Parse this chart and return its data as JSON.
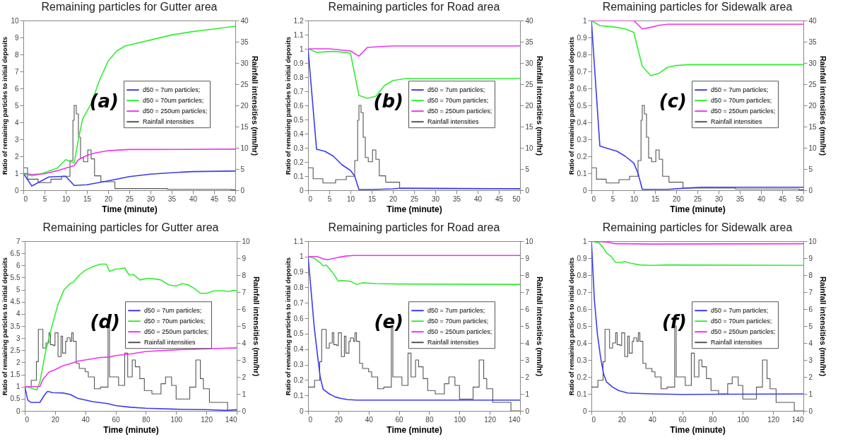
{
  "chart_data": [
    {
      "type": "line",
      "title": "Remaining particles for Gutter area",
      "xlabel": "Time (minute)",
      "ylabel": "Ratio of remaining particles to initial deposits",
      "y2label": "Rainfall intensities (mm/hr)",
      "annotations": [
        "(a)"
      ],
      "legend": "right",
      "xlim": [
        0,
        50
      ],
      "xticks": [
        0,
        5,
        10,
        15,
        20,
        25,
        30,
        35,
        40,
        45,
        50
      ],
      "ylim": [
        0,
        10
      ],
      "yticks": [
        0,
        1,
        2,
        3,
        4,
        5,
        6,
        7,
        8,
        9,
        10
      ],
      "y2lim": [
        0,
        40
      ],
      "y2ticks": [
        0,
        5,
        10,
        15,
        20,
        25,
        30,
        35,
        40
      ],
      "series": [
        {
          "name": "d50 = 7um particles;",
          "color": "#3b3bf0",
          "x": [
            0,
            2,
            6,
            10,
            12,
            15,
            20,
            25,
            30,
            35,
            40,
            50
          ],
          "values": [
            1,
            0.25,
            0.78,
            0.82,
            0.28,
            0.32,
            0.55,
            0.8,
            0.95,
            1.03,
            1.1,
            1.13
          ]
        },
        {
          "name": "d50 = 70um particles;",
          "color": "#33ee33",
          "x": [
            0,
            2,
            4,
            8,
            10,
            12,
            13,
            14,
            16,
            18,
            20,
            22,
            24,
            30,
            35,
            40,
            45,
            50
          ],
          "values": [
            0.97,
            0.85,
            0.95,
            1.3,
            1.8,
            1.6,
            3,
            4.2,
            5.1,
            6.5,
            7.6,
            8.2,
            8.5,
            8.85,
            9.15,
            9.35,
            9.5,
            9.67
          ]
        },
        {
          "name": "d50 = 250um particles;",
          "color": "#ee33ee",
          "x": [
            0,
            2,
            5,
            8,
            10,
            12,
            13,
            15,
            17,
            20,
            25,
            30,
            50
          ],
          "values": [
            1,
            0.93,
            0.97,
            1.15,
            1.3,
            1.45,
            1.8,
            2.05,
            2.2,
            2.33,
            2.4,
            2.4,
            2.42
          ]
        },
        {
          "name": "Rainfall intensities",
          "color": "#555555",
          "type": "step",
          "axis": "y2",
          "x": [
            0,
            1,
            3.5,
            6.5,
            9,
            11,
            11.7,
            12,
            12.5,
            13,
            13.5,
            14.2,
            15.2,
            16,
            16.8,
            18.3,
            21.6,
            34,
            49,
            50
          ],
          "values": [
            5.3,
            2.6,
            1.8,
            2.6,
            3.3,
            7,
            16.5,
            20,
            18,
            12.5,
            7.6,
            6.7,
            9.5,
            7.4,
            3.4,
            2,
            0.4,
            0.2,
            0.1,
            0.1
          ]
        }
      ]
    },
    {
      "type": "line",
      "title": "Remaining particles for Road area",
      "xlabel": "Time (minute)",
      "ylabel": "Ratio of remaining particles to initial deposits",
      "y2label": "Rainfall intensities (mm/hr)",
      "annotations": [
        "(b)"
      ],
      "legend": "right",
      "xlim": [
        0,
        50
      ],
      "xticks": [
        0,
        5,
        10,
        15,
        20,
        25,
        30,
        35,
        40,
        45,
        50
      ],
      "ylim": [
        0,
        1.2
      ],
      "yticks": [
        0,
        0.1,
        0.2,
        0.3,
        0.4,
        0.5,
        0.6,
        0.7,
        0.8,
        0.9,
        1,
        1.1,
        1.2
      ],
      "y2lim": [
        0,
        40
      ],
      "y2ticks": [
        0,
        5,
        10,
        15,
        20,
        25,
        30,
        35,
        40
      ],
      "series": [
        {
          "name": "d50 = 7um particles;",
          "color": "#3b3bf0",
          "x": [
            0,
            2,
            4,
            6,
            8,
            10,
            11,
            12,
            15,
            20,
            22,
            30,
            50
          ],
          "values": [
            1,
            0.29,
            0.275,
            0.24,
            0.18,
            0.14,
            0.1,
            0.005,
            0.005,
            0.01,
            0.015,
            0.013,
            0.01
          ]
        },
        {
          "name": "d50 = 70um particles;",
          "color": "#33ee33",
          "x": [
            0,
            2,
            4,
            6,
            8,
            10,
            12,
            14,
            16,
            18,
            20,
            23,
            50
          ],
          "values": [
            1,
            0.975,
            0.978,
            0.982,
            0.977,
            0.97,
            0.67,
            0.65,
            0.665,
            0.74,
            0.775,
            0.79,
            0.79
          ]
        },
        {
          "name": "d50 = 250um particles;",
          "color": "#ee33ee",
          "x": [
            0,
            5,
            10,
            12,
            14,
            20,
            50
          ],
          "values": [
            1,
            1,
            0.985,
            0.948,
            1.01,
            1.02,
            1.02
          ]
        },
        {
          "name": "Rainfall intensities",
          "color": "#555555",
          "type": "step",
          "axis": "y2",
          "x": [
            0,
            1.2,
            3.5,
            6.5,
            9,
            11,
            11.7,
            12,
            12.5,
            13,
            13.5,
            14.2,
            15.2,
            16,
            16.8,
            18.3,
            21.6,
            50
          ],
          "values": [
            5.3,
            2.7,
            1.7,
            2.5,
            3.3,
            7,
            16.5,
            20,
            18.3,
            12.5,
            7.7,
            6.7,
            9.5,
            7.3,
            3.4,
            1.9,
            0.4,
            0.4
          ]
        }
      ]
    },
    {
      "type": "line",
      "title": "Remaining particles for Sidewalk area",
      "xlabel": "Time (minute)",
      "ylabel": "Ratio of remaining particles to initial deposits",
      "y2label": "Rainfall intensities (mm/hr)",
      "annotations": [
        "(c)"
      ],
      "legend": "right",
      "xlim": [
        0,
        50
      ],
      "xticks": [
        0,
        5,
        10,
        15,
        20,
        25,
        30,
        35,
        40,
        45,
        50
      ],
      "ylim": [
        0,
        1
      ],
      "yticks": [
        0,
        0.1,
        0.2,
        0.3,
        0.4,
        0.5,
        0.6,
        0.7,
        0.8,
        0.9,
        1
      ],
      "y2lim": [
        0,
        40
      ],
      "y2ticks": [
        0,
        5,
        10,
        15,
        20,
        25,
        30,
        35,
        40
      ],
      "series": [
        {
          "name": "d50 = 7um particles;",
          "color": "#3b3bf0",
          "x": [
            0,
            2,
            4,
            6,
            8,
            10,
            11,
            12,
            18,
            22,
            26,
            50
          ],
          "values": [
            1,
            0.26,
            0.245,
            0.23,
            0.2,
            0.16,
            0.1,
            0.005,
            0.005,
            0.012,
            0.018,
            0.018
          ]
        },
        {
          "name": "d50 = 70um particles;",
          "color": "#33ee33",
          "x": [
            0,
            2,
            4,
            6,
            8,
            10,
            12,
            14,
            16,
            18,
            20,
            23,
            50
          ],
          "values": [
            1,
            0.97,
            0.965,
            0.96,
            0.95,
            0.93,
            0.73,
            0.675,
            0.69,
            0.725,
            0.735,
            0.74,
            0.74
          ]
        },
        {
          "name": "d50 = 250um particles;",
          "color": "#ee33ee",
          "x": [
            0,
            10,
            12,
            14,
            16,
            18,
            50
          ],
          "values": [
            1,
            1,
            0.95,
            0.96,
            0.972,
            0.978,
            0.978
          ]
        },
        {
          "name": "Rainfall intensities",
          "color": "#555555",
          "type": "step",
          "axis": "y2",
          "x": [
            0,
            1.2,
            3.5,
            6.5,
            9,
            11,
            11.7,
            12,
            12.5,
            13,
            13.5,
            14.2,
            15.2,
            16,
            16.8,
            18.3,
            21.6,
            34,
            49,
            50
          ],
          "values": [
            5.3,
            2.6,
            1.7,
            2.5,
            3.3,
            7,
            16.5,
            20,
            18,
            12.5,
            7.6,
            6.7,
            9.5,
            7.3,
            3.3,
            1.9,
            0.5,
            0.3,
            0.1,
            0.1
          ]
        }
      ]
    },
    {
      "type": "line",
      "title": "Remaining particles for Gutter area",
      "xlabel": "Time (minute)",
      "ylabel": "Ratio of remaining particles to initial deposits",
      "y2label": "Rainfall intensities (mm/hr)",
      "annotations": [
        "(d)"
      ],
      "legend": "right",
      "xlim": [
        0,
        140
      ],
      "xticks": [
        0,
        20,
        40,
        60,
        80,
        100,
        120,
        140
      ],
      "ylim": [
        0,
        7
      ],
      "yticks": [
        0,
        0.5,
        1,
        1.5,
        2,
        2.5,
        3,
        3.5,
        4,
        4.5,
        5,
        5.5,
        6,
        6.5,
        7
      ],
      "y2lim": [
        0,
        10
      ],
      "y2ticks": [
        0,
        1,
        2,
        3,
        4,
        5,
        6,
        7,
        8,
        9,
        10
      ],
      "series": [
        {
          "name": "d50 = 7um particles;",
          "color": "#3b3bf0",
          "x": [
            0,
            2,
            4,
            10,
            13,
            15,
            17,
            18,
            25,
            30,
            35,
            45,
            55,
            60,
            70,
            80,
            100,
            120,
            133,
            140
          ],
          "values": [
            1,
            0.45,
            0.35,
            0.35,
            0.65,
            0.8,
            0.78,
            0.75,
            0.74,
            0.68,
            0.52,
            0.38,
            0.3,
            0.22,
            0.15,
            0.11,
            0.07,
            0.05,
            0.02,
            0.05
          ]
        },
        {
          "name": "d50 = 70um particles;",
          "color": "#33ee33",
          "x": [
            0,
            4,
            8,
            10,
            14,
            18,
            22,
            26,
            30,
            32,
            36,
            40,
            45,
            50,
            54,
            56,
            60,
            62,
            66,
            69,
            72,
            76,
            80,
            85,
            90,
            95,
            100,
            104,
            108,
            112,
            116,
            120,
            125,
            130,
            135,
            138,
            140
          ],
          "values": [
            1,
            0.95,
            0.86,
            1.2,
            2.5,
            3.5,
            4.4,
            5,
            5.25,
            5.3,
            5.6,
            5.8,
            5.95,
            6.05,
            6.05,
            5.75,
            5.85,
            5.85,
            5.9,
            5.6,
            5.62,
            5.4,
            5.45,
            5.45,
            5.4,
            5.2,
            5.15,
            5.25,
            5.2,
            5.05,
            4.85,
            4.85,
            4.95,
            4.95,
            4.93,
            4.97,
            4.95
          ]
        },
        {
          "name": "d50 = 250um particles;",
          "color": "#ee33ee",
          "x": [
            0,
            8,
            10,
            12,
            16,
            20,
            25,
            30,
            35,
            40,
            50,
            56,
            60,
            70,
            80,
            100,
            120,
            140
          ],
          "values": [
            1,
            1,
            1,
            1.3,
            1.6,
            1.7,
            1.85,
            1.95,
            2.05,
            2.1,
            2.2,
            2.22,
            2.28,
            2.35,
            2.45,
            2.52,
            2.56,
            2.6
          ]
        },
        {
          "name": "Rainfall intensities",
          "color": "#555555",
          "type": "step",
          "axis": "y2",
          "x": [
            0,
            4.3,
            7.7,
            9,
            10,
            12,
            14,
            16,
            17,
            19,
            20,
            22,
            24,
            25,
            27,
            28,
            30,
            31,
            32,
            34,
            36,
            40,
            42,
            46,
            50,
            55,
            56,
            59,
            62,
            66,
            68,
            71,
            73,
            76,
            79,
            84,
            90,
            93,
            97,
            100,
            109,
            113,
            116,
            118,
            122,
            134,
            140
          ],
          "values": [
            1.44,
            1.8,
            2.9,
            4.8,
            4.8,
            3.7,
            4,
            4.6,
            3.9,
            3.85,
            4.6,
            3.2,
            4.4,
            3.4,
            4.1,
            4.3,
            4.1,
            4.6,
            4.1,
            2.8,
            2.5,
            2.3,
            2,
            1.3,
            1.4,
            5,
            2,
            2,
            1.5,
            3.4,
            2,
            3,
            2.6,
            1.9,
            1.2,
            1,
            1.6,
            2,
            1.5,
            0.7,
            1.4,
            3,
            1.9,
            1.3,
            0.5,
            0,
            0
          ]
        }
      ]
    },
    {
      "type": "line",
      "title": "Remaining particles for Road area",
      "xlabel": "Time (minute)",
      "ylabel": "Ratio of remaining particles to initial deposits",
      "y2label": "Rainfall intensities (mm/hr)",
      "annotations": [
        "(e)"
      ],
      "legend": "right",
      "xlim": [
        0,
        140
      ],
      "xticks": [
        0,
        20,
        40,
        60,
        80,
        100,
        120,
        140
      ],
      "ylim": [
        0,
        1.1
      ],
      "yticks": [
        0,
        0.1,
        0.2,
        0.3,
        0.4,
        0.5,
        0.6,
        0.7,
        0.8,
        0.9,
        1,
        1.1
      ],
      "y2lim": [
        0,
        10
      ],
      "y2ticks": [
        0,
        1,
        2,
        3,
        4,
        5,
        6,
        7,
        8,
        9,
        10
      ],
      "series": [
        {
          "name": "d50 = 7um particles;",
          "color": "#3b3bf0",
          "x": [
            0,
            2,
            4,
            6,
            8,
            10,
            14,
            18,
            22,
            26,
            32,
            140
          ],
          "values": [
            1,
            0.78,
            0.55,
            0.38,
            0.22,
            0.14,
            0.11,
            0.09,
            0.08,
            0.073,
            0.07,
            0.07
          ]
        },
        {
          "name": "d50 = 70um particles;",
          "color": "#33ee33",
          "x": [
            0,
            4,
            8,
            10,
            12,
            16,
            20,
            22,
            28,
            32,
            36,
            45,
            60,
            140
          ],
          "values": [
            1,
            0.99,
            0.96,
            0.94,
            0.945,
            0.9,
            0.84,
            0.845,
            0.84,
            0.82,
            0.83,
            0.825,
            0.822,
            0.82
          ]
        },
        {
          "name": "d50 = 250um particles;",
          "color": "#ee33ee",
          "x": [
            0,
            6,
            10,
            13,
            20,
            25,
            30,
            140
          ],
          "values": [
            1,
            1,
            0.985,
            0.98,
            0.995,
            1.003,
            1.007,
            1.007
          ]
        },
        {
          "name": "Rainfall intensities",
          "color": "#555555",
          "type": "step",
          "axis": "y2",
          "x": [
            0,
            4.3,
            7.7,
            9,
            10,
            12,
            14,
            16,
            17,
            19,
            20,
            22,
            24,
            25,
            27,
            28,
            30,
            31,
            32,
            34,
            36,
            40,
            42,
            46,
            50,
            55,
            56,
            59,
            62,
            66,
            68,
            71,
            73,
            76,
            79,
            84,
            90,
            93,
            97,
            100,
            109,
            113,
            116,
            118,
            122,
            134,
            140
          ],
          "values": [
            1.4,
            1.8,
            2.9,
            4.8,
            4.8,
            3.7,
            4,
            4.6,
            3.9,
            3.85,
            4.6,
            3.2,
            4.4,
            3.4,
            4.1,
            4.3,
            4.1,
            4.6,
            4.1,
            2.8,
            2.5,
            2.3,
            2,
            1.3,
            1.4,
            5,
            2,
            2,
            1.5,
            3.4,
            2,
            3,
            2.6,
            1.9,
            1.2,
            1,
            1.6,
            2,
            1.5,
            0.7,
            1.4,
            3,
            1.9,
            1.3,
            0.5,
            0,
            0
          ]
        }
      ]
    },
    {
      "type": "line",
      "title": "Remaining particles for Sidewalk area",
      "xlabel": "Time (minute)",
      "ylabel": "Ratio of remaining particles to initial deposits",
      "y2label": "Rainfall intensities (mm/hr)",
      "annotations": [
        "(f)"
      ],
      "legend": "right",
      "xlim": [
        0,
        140
      ],
      "xticks": [
        0,
        20,
        40,
        60,
        80,
        100,
        120,
        140
      ],
      "ylim": [
        0,
        1
      ],
      "yticks": [
        0,
        0.1,
        0.2,
        0.3,
        0.4,
        0.5,
        0.6,
        0.7,
        0.8,
        0.9,
        1
      ],
      "y2lim": [
        0,
        10
      ],
      "y2ticks": [
        0,
        1,
        2,
        3,
        4,
        5,
        6,
        7,
        8,
        9,
        10
      ],
      "series": [
        {
          "name": "d50 = 7um particles;",
          "color": "#3b3bf0",
          "x": [
            0,
            2,
            4,
            6,
            8,
            10,
            14,
            18,
            24,
            40,
            60,
            140
          ],
          "values": [
            1,
            0.65,
            0.45,
            0.32,
            0.22,
            0.17,
            0.14,
            0.12,
            0.105,
            0.1,
            0.097,
            0.1
          ]
        },
        {
          "name": "d50 = 70um particles;",
          "color": "#33ee33",
          "x": [
            0,
            5,
            8,
            10,
            13,
            16,
            20,
            22,
            26,
            32,
            40,
            50,
            140
          ],
          "values": [
            1,
            0.99,
            0.96,
            0.93,
            0.91,
            0.875,
            0.875,
            0.88,
            0.87,
            0.86,
            0.857,
            0.86,
            0.857
          ]
        },
        {
          "name": "d50 = 250um particles;",
          "color": "#ee33ee",
          "x": [
            0,
            10,
            16,
            22,
            40,
            140
          ],
          "values": [
            1,
            0.995,
            0.985,
            0.985,
            0.983,
            0.985
          ]
        },
        {
          "name": "Rainfall intensities",
          "color": "#555555",
          "type": "step",
          "axis": "y2",
          "x": [
            0,
            4.3,
            7.7,
            9,
            10,
            12,
            14,
            16,
            17,
            19,
            20,
            22,
            24,
            25,
            27,
            28,
            30,
            31,
            32,
            34,
            36,
            40,
            42,
            46,
            50,
            55,
            56,
            59,
            62,
            66,
            68,
            71,
            73,
            76,
            79,
            84,
            90,
            93,
            97,
            100,
            109,
            113,
            116,
            118,
            122,
            134,
            140
          ],
          "values": [
            1.4,
            1.8,
            2.9,
            4.8,
            4.8,
            3.7,
            4,
            4.6,
            3.9,
            3.85,
            4.6,
            3.2,
            4.4,
            3.4,
            4.1,
            4.3,
            4.1,
            4.6,
            4.1,
            2.8,
            2.5,
            2.3,
            2,
            1.3,
            1.4,
            5,
            2,
            2,
            1.5,
            3.4,
            2,
            3,
            2.6,
            1.9,
            1.2,
            1,
            1.6,
            2,
            1.5,
            0.7,
            1.4,
            3,
            1.9,
            1.3,
            0.5,
            0,
            0
          ]
        }
      ]
    }
  ]
}
